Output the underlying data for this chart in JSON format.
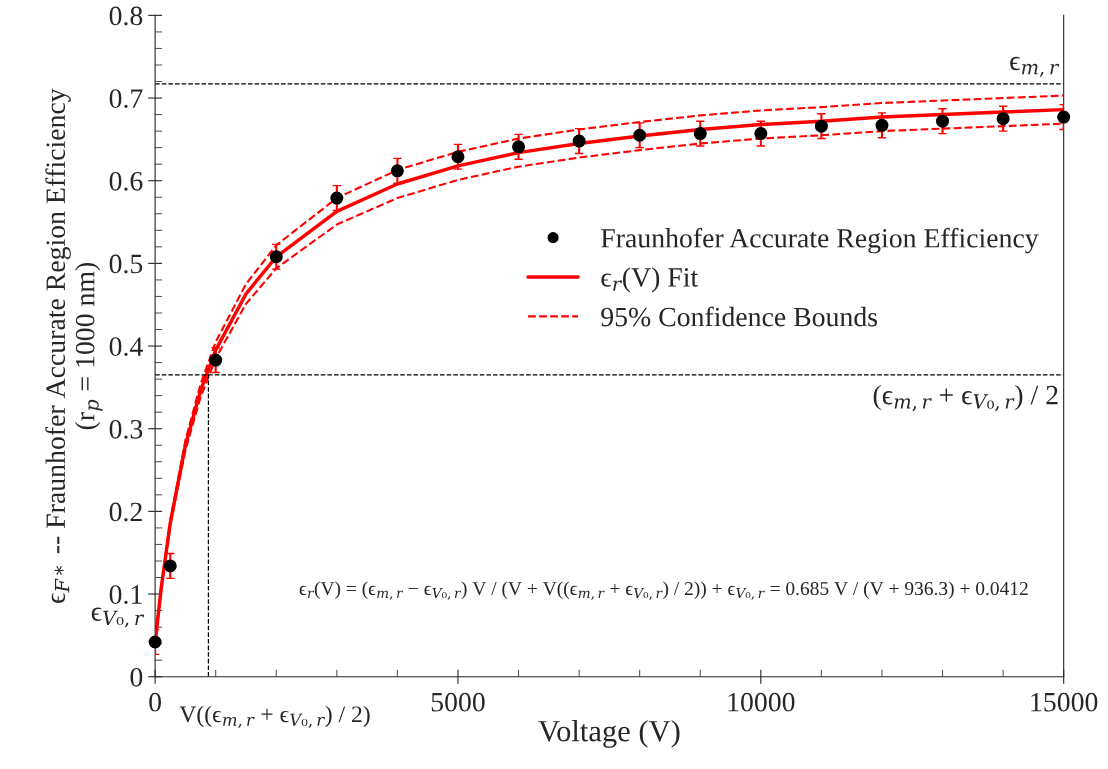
{
  "chart_data": {
    "type": "scatter",
    "xlabel": "Voltage (V)",
    "ylabel": "ϵ$_{F*}$ -- Fraunhofer Accurate Region Efficiency\n(r$_{p}$ = 1000 nm)",
    "xlim": [
      0,
      15000
    ],
    "ylim": [
      0,
      0.8
    ],
    "xticks": [
      0,
      5000,
      10000,
      15000
    ],
    "yticks": [
      0,
      0.1,
      0.2,
      0.3,
      0.4,
      0.5,
      0.6,
      0.7,
      0.8
    ],
    "grid": false,
    "legend": "right",
    "series": [
      {
        "name": "Fraunhofer Accurate Region Efficiency",
        "color": "#000000",
        "marker": "circle",
        "x": [
          0,
          250,
          1000,
          2000,
          3000,
          4000,
          5000,
          6000,
          7000,
          8000,
          9000,
          10000,
          11000,
          12000,
          13000,
          14000,
          15000
        ],
        "values": [
          0.042,
          0.134,
          0.383,
          0.508,
          0.579,
          0.612,
          0.629,
          0.641,
          0.648,
          0.655,
          0.657,
          0.657,
          0.666,
          0.667,
          0.672,
          0.675,
          0.677
        ],
        "errors": [
          0.015,
          0.015,
          0.015,
          0.015,
          0.015,
          0.015,
          0.015,
          0.015,
          0.015,
          0.015,
          0.015,
          0.015,
          0.015,
          0.015,
          0.015,
          0.015,
          0.015
        ]
      },
      {
        "name": "ϵ$_{r}$(V) Fit",
        "type": "line",
        "color": "#ff0000",
        "marker": "none",
        "line_style": "solid",
        "x": [
          0,
          100,
          250,
          500,
          750,
          1000,
          1500,
          2000,
          3000,
          4000,
          5000,
          6000,
          7000,
          8000,
          9000,
          10000,
          11000,
          12000,
          13000,
          14000,
          15000
        ],
        "values": [
          0.041,
          0.107,
          0.186,
          0.28,
          0.346,
          0.395,
          0.463,
          0.508,
          0.563,
          0.596,
          0.618,
          0.634,
          0.645,
          0.654,
          0.662,
          0.668,
          0.672,
          0.677,
          0.68,
          0.683,
          0.686
        ]
      },
      {
        "name": "95% Confidence Bounds",
        "type": "line",
        "color": "#ff0000",
        "marker": "none",
        "line_style": "dashed",
        "x": [
          0,
          100,
          250,
          500,
          750,
          1000,
          1500,
          2000,
          3000,
          4000,
          5000,
          6000,
          7000,
          8000,
          9000,
          10000,
          11000,
          12000,
          13000,
          14000,
          15000
        ],
        "values": [
          0.041,
          0.108,
          0.189,
          0.286,
          0.354,
          0.405,
          0.475,
          0.522,
          0.579,
          0.613,
          0.635,
          0.651,
          0.662,
          0.671,
          0.679,
          0.685,
          0.689,
          0.694,
          0.697,
          0.7,
          0.703
        ]
      },
      {
        "type": "line",
        "color": "#ff0000",
        "marker": "none",
        "line_style": "dashed",
        "x": [
          0,
          100,
          250,
          500,
          750,
          1000,
          1500,
          2000,
          3000,
          4000,
          5000,
          6000,
          7000,
          8000,
          9000,
          10000,
          11000,
          12000,
          13000,
          14000,
          15000
        ],
        "values": [
          0.041,
          0.106,
          0.183,
          0.274,
          0.338,
          0.385,
          0.451,
          0.494,
          0.547,
          0.579,
          0.601,
          0.617,
          0.628,
          0.637,
          0.645,
          0.651,
          0.655,
          0.66,
          0.663,
          0.666,
          0.669
        ]
      }
    ],
    "ref_lines": [
      {
        "axis": "y",
        "value": 0.717,
        "label": "ϵ$_{m,r}$",
        "color": "#000000",
        "line_style": "dashed"
      },
      {
        "axis": "y",
        "value": 0.365,
        "label": "(ϵ$_{m,r}$ + ϵ$_{V₀,r}$) / 2",
        "color": "#000000",
        "line_style": "dashed"
      },
      {
        "axis": "x",
        "value": 880,
        "label": "V((ϵ$_{m,r}$ + ϵ$_{V₀,r}$) / 2)",
        "color": "#000000",
        "line_style": "dashed"
      }
    ],
    "annotations": [
      {
        "text": "ϵ$_{V₀,r}$",
        "x": 0,
        "y": 0.042
      },
      "ϵ$_{r}$(V) = (ϵ$_{m,r}$ − ϵ$_{V₀,r}$) V / (V + V((ϵ$_{m,r}$ + ϵ$_{V₀,r}$) / 2)) + ϵ$_{V₀,r}$ = 0.685 V / (V + 936.3) + 0.0412"
    ]
  }
}
